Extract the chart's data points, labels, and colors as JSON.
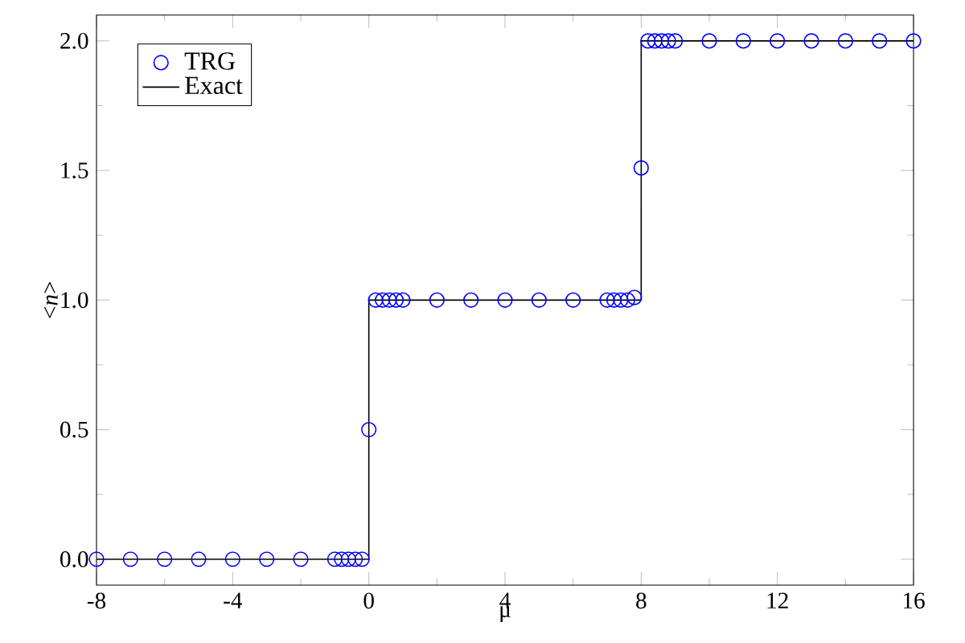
{
  "chart_data": {
    "type": "scatter",
    "xlabel": "μ",
    "ylabel": "<*n*>",
    "xlim": [
      -8,
      16
    ],
    "ylim": [
      -0.1,
      2.1
    ],
    "xticks": [
      -8,
      -4,
      0,
      4,
      8,
      12,
      16
    ],
    "yticks": [
      {
        "value": 0,
        "label": "0.0"
      },
      {
        "value": 0.5,
        "label": "0.5"
      },
      {
        "value": 1,
        "label": "1.0"
      },
      {
        "value": 1.5,
        "label": "1.5"
      },
      {
        "value": 2,
        "label": "2.0"
      }
    ],
    "grid": false,
    "legend": "top left",
    "series": [
      {
        "name": "TRG",
        "marker": "circle",
        "color": "#0000ff",
        "x": [
          -8,
          -7,
          -6,
          -5,
          -4,
          -3,
          -2,
          -1,
          -0.8,
          -0.6,
          -0.4,
          -0.2,
          0,
          0.2,
          0.4,
          0.6,
          0.8,
          1,
          2,
          3,
          4,
          5,
          6,
          7,
          7.2,
          7.4,
          7.6,
          7.8,
          8,
          8.2,
          8.4,
          8.6,
          8.8,
          9,
          10,
          11,
          12,
          13,
          14,
          15,
          16
        ],
        "values": [
          0,
          0,
          0,
          0,
          0,
          0,
          0,
          0,
          0,
          0,
          0,
          0,
          0.5,
          1,
          1,
          1,
          1,
          1,
          1,
          1,
          1,
          1,
          1,
          1,
          1,
          1,
          1,
          1.01,
          1.51,
          2,
          2,
          2,
          2,
          2,
          2,
          2,
          2,
          2,
          2,
          2,
          2
        ]
      },
      {
        "name": "Exact",
        "type": "line",
        "marker": "none",
        "line_style": "solid",
        "color": "#000000",
        "x": [
          -8,
          0,
          0,
          8,
          8,
          16
        ],
        "values": [
          0,
          0,
          1,
          1,
          2,
          2
        ]
      }
    ]
  }
}
